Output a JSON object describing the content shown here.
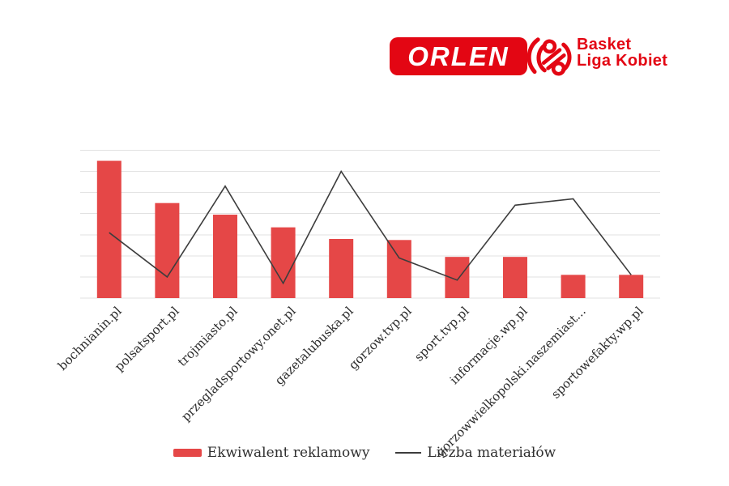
{
  "logo": {
    "orlen_text": "ORLEN",
    "brand_line1": "Basket",
    "brand_line2": "Liga Kobiet",
    "brand_red": "#e30613"
  },
  "colors": {
    "bar": "#e54747",
    "line": "#3d3d3d",
    "grid": "#e2e2e2",
    "label_text": "#2d2d2d",
    "background": "#ffffff"
  },
  "chart_data": {
    "type": "bar",
    "combo": "bar+line",
    "title": "",
    "xlabel": "",
    "ylabel": "",
    "categories": [
      "bochnianin.pl",
      "polsatsport.pl",
      "trojmiasto.pl",
      "przegladsportowy.onet.pl",
      "gazetalubuska.pl",
      "gorzow.tvp.pl",
      "sport.tvp.pl",
      "informacje.wp.pl",
      "gorzowwielkopolski.naszemiast...",
      "sportowefakty.wp.pl"
    ],
    "series": [
      {
        "name": "Ekwiwalent reklamowy",
        "type": "bar",
        "color": "#e54747",
        "values": [
          6.5,
          4.5,
          3.95,
          3.35,
          2.8,
          2.75,
          1.95,
          1.95,
          1.1,
          1.1
        ]
      },
      {
        "name": "Liczba materiałów",
        "type": "line",
        "color": "#3d3d3d",
        "values": [
          3.1,
          1.0,
          5.3,
          0.7,
          6.0,
          1.9,
          0.85,
          4.4,
          4.7,
          1.1
        ]
      }
    ],
    "ylim": [
      0,
      7
    ],
    "gridline_count": 8,
    "y_axis_tick_labels_visible": false,
    "grid": "horizontal",
    "legend_position": "bottom-center",
    "x_label_rotation_deg": 45
  }
}
